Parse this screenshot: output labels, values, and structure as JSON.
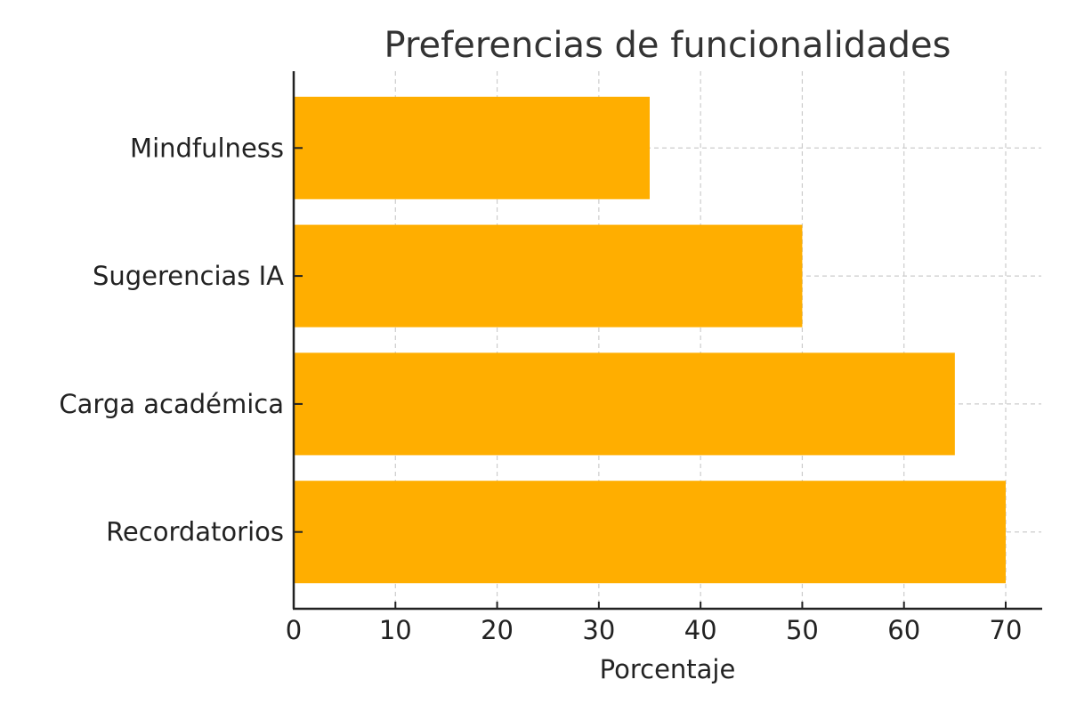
{
  "chart_data": {
    "type": "bar",
    "orientation": "horizontal",
    "title": "Preferencias de funcionalidades",
    "xlabel": "Porcentaje",
    "ylabel": "",
    "categories": [
      "Recordatorios",
      "Carga académica",
      "Sugerencias IA",
      "Mindfulness"
    ],
    "values": [
      70,
      65,
      50,
      35
    ],
    "xlim": [
      0,
      73.5
    ],
    "xticks": [
      0,
      10,
      20,
      30,
      40,
      50,
      60,
      70
    ],
    "grid": true,
    "bar_color": "#FFAE00"
  }
}
